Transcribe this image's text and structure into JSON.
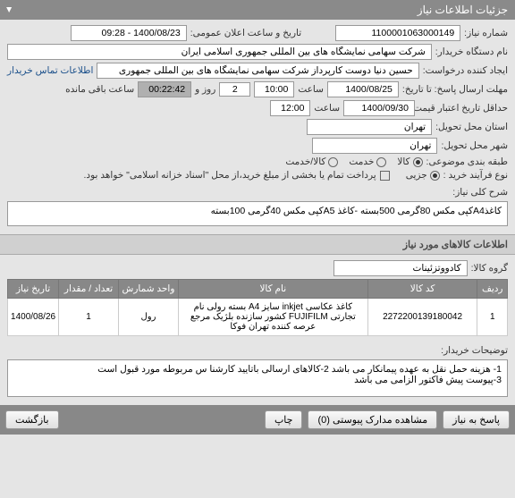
{
  "header": {
    "title": "جزئیات اطلاعات نیاز"
  },
  "form": {
    "requestNumLabel": "شماره نیاز:",
    "requestNum": "1100001063000149",
    "publicDateLabel": "تاریخ و ساعت اعلان عمومی:",
    "publicDate": "1400/08/23 - 09:28",
    "buyerOrgLabel": "نام دستگاه خریدار:",
    "buyerOrg": "شرکت سهامی نمایشگاه های بین المللی جمهوری اسلامی ایران",
    "requestCreatorLabel": "ایجاد کننده درخواست:",
    "requestCreator": "حسین دنیا دوست کارپرداز شرکت سهامی نمایشگاه های بین المللی جمهوری",
    "contactLink": "اطلاعات تماس خریدار",
    "responseDeadlineLabel": "مهلت ارسال پاسخ: تا تاریخ:",
    "responseDate": "1400/08/25",
    "hourLabel": "ساعت",
    "responseHour": "10:00",
    "daysVal": "2",
    "daysAndLabel": "روز و",
    "countdown": "00:22:42",
    "remainingLabel": "ساعت باقی مانده",
    "minValidityLabel": "حداقل تاریخ اعتبار قیمت: تا تاریخ:",
    "validityDate": "1400/09/30",
    "validityHour": "12:00",
    "provinceLabel": "استان محل تحویل:",
    "province": "تهران",
    "cityLabel": "شهر محل تحویل:",
    "city": "تهران",
    "categoryLabel": "طبقه بندی موضوعی:",
    "catGoods": "کالا",
    "catService": "خدمت",
    "catGoodsService": "کالا/خدمت",
    "purchaseProcessLabel": "نوع فرآیند خرید :",
    "procPartial": "جزیی",
    "procNote": "پرداخت تمام یا بخشی از مبلغ خرید،از محل \"اسناد خزانه اسلامی\" خواهد بود.",
    "descLabel": "شرح کلی نیاز:",
    "desc": "کاغذA4کپی مکس 80گرمی 500بسته -کاغذ A5کپی مکس 40گرمی 100بسته",
    "itemsSectionTitle": "اطلاعات کالاهای مورد نیاز",
    "goodsGroupLabel": "گروه کالا:",
    "goodsGroup": "کادووتزئینات",
    "buyerDescLabel": "توضیحات خریدار:",
    "buyerDesc": "1- هزینه حمل نقل به عهده پیمانکار می باشد 2-کالاهای ارسالی باتایید کارشنا س مربوطه مورد قبول است\n3-پیوست پیش فاکتور الزامی می باشد"
  },
  "table": {
    "columns": [
      "ردیف",
      "کد کالا",
      "نام کالا",
      "واحد شمارش",
      "تعداد / مقدار",
      "تاریخ نیاز"
    ],
    "widths": [
      "6%",
      "22%",
      "38%",
      "12%",
      "12%",
      "14%"
    ],
    "rows": [
      [
        "1",
        "2272200139180042",
        "کاغذ عکاسی inkjet سایز A4 بسته رولی نام تجارتی FUJIFILM کشور سازنده بلژیک مرجع عرصه کننده تهران فوکا",
        "رول",
        "1",
        "1400/08/26"
      ]
    ]
  },
  "footer": {
    "replyBtn": "پاسخ به نیاز",
    "attachBtn": "مشاهده مدارک پیوستی (0)",
    "printBtn": "چاپ",
    "backBtn": "بازگشت"
  },
  "colors": {
    "headerBg": "#8a8a8a",
    "countdownBg": "#b0b0b0"
  }
}
